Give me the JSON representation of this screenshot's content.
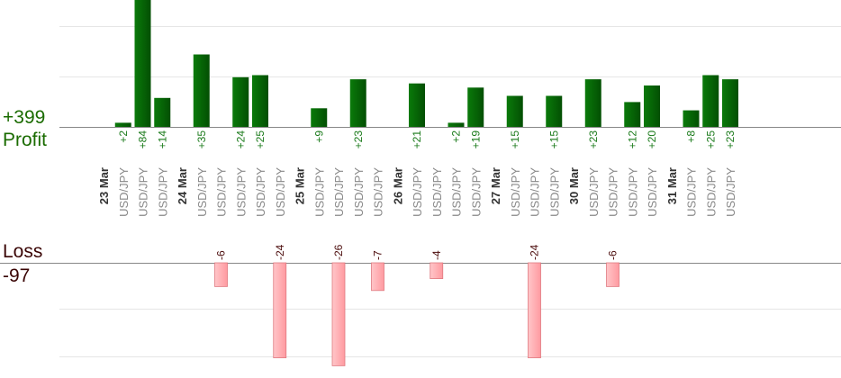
{
  "summary": {
    "profit_total": "+399",
    "profit_label": "Profit",
    "loss_label": "Loss",
    "loss_total": "-97"
  },
  "colors": {
    "profit_bar": "#0b6a0b",
    "profit_text": "#1a7a1a",
    "loss_bar": "#ffb5b8",
    "loss_border": "#e07a80",
    "loss_text": "#4a0a0a",
    "date_text": "#333333",
    "pair_text": "#888888",
    "grid": "#e6e6e6",
    "axis": "#888888"
  },
  "chart_data": {
    "type": "bar",
    "slots": [
      {
        "label": "23 Mar",
        "kind": "date"
      },
      {
        "label": "USD/JPY",
        "kind": "trade",
        "profit": 2
      },
      {
        "label": "USD/JPY",
        "kind": "trade",
        "profit": 84
      },
      {
        "label": "USD/JPY",
        "kind": "trade",
        "profit": 14
      },
      {
        "label": "24 Mar",
        "kind": "date"
      },
      {
        "label": "USD/JPY",
        "kind": "trade",
        "profit": 35
      },
      {
        "label": "USD/JPY",
        "kind": "trade",
        "loss": -6
      },
      {
        "label": "USD/JPY",
        "kind": "trade",
        "profit": 24
      },
      {
        "label": "USD/JPY",
        "kind": "trade",
        "profit": 25
      },
      {
        "label": "USD/JPY",
        "kind": "trade",
        "loss": -24
      },
      {
        "label": "25 Mar",
        "kind": "date"
      },
      {
        "label": "USD/JPY",
        "kind": "trade",
        "profit": 9
      },
      {
        "label": "USD/JPY",
        "kind": "trade",
        "loss": -26
      },
      {
        "label": "USD/JPY",
        "kind": "trade",
        "profit": 23
      },
      {
        "label": "USD/JPY",
        "kind": "trade",
        "loss": -7
      },
      {
        "label": "26 Mar",
        "kind": "date"
      },
      {
        "label": "USD/JPY",
        "kind": "trade",
        "profit": 21
      },
      {
        "label": "USD/JPY",
        "kind": "trade",
        "loss": -4
      },
      {
        "label": "USD/JPY",
        "kind": "trade",
        "profit": 2
      },
      {
        "label": "USD/JPY",
        "kind": "trade",
        "profit": 19
      },
      {
        "label": "27 Mar",
        "kind": "date"
      },
      {
        "label": "USD/JPY",
        "kind": "trade",
        "profit": 15
      },
      {
        "label": "USD/JPY",
        "kind": "trade",
        "loss": -24
      },
      {
        "label": "USD/JPY",
        "kind": "trade",
        "profit": 15
      },
      {
        "label": "30 Mar",
        "kind": "date"
      },
      {
        "label": "USD/JPY",
        "kind": "trade",
        "profit": 23
      },
      {
        "label": "USD/JPY",
        "kind": "trade",
        "loss": -6
      },
      {
        "label": "USD/JPY",
        "kind": "trade",
        "profit": 12
      },
      {
        "label": "USD/JPY",
        "kind": "trade",
        "profit": 20
      },
      {
        "label": "31 Mar",
        "kind": "date"
      },
      {
        "label": "USD/JPY",
        "kind": "trade",
        "profit": 8
      },
      {
        "label": "USD/JPY",
        "kind": "trade",
        "profit": 25
      },
      {
        "label": "USD/JPY",
        "kind": "trade",
        "profit": 23
      }
    ]
  }
}
